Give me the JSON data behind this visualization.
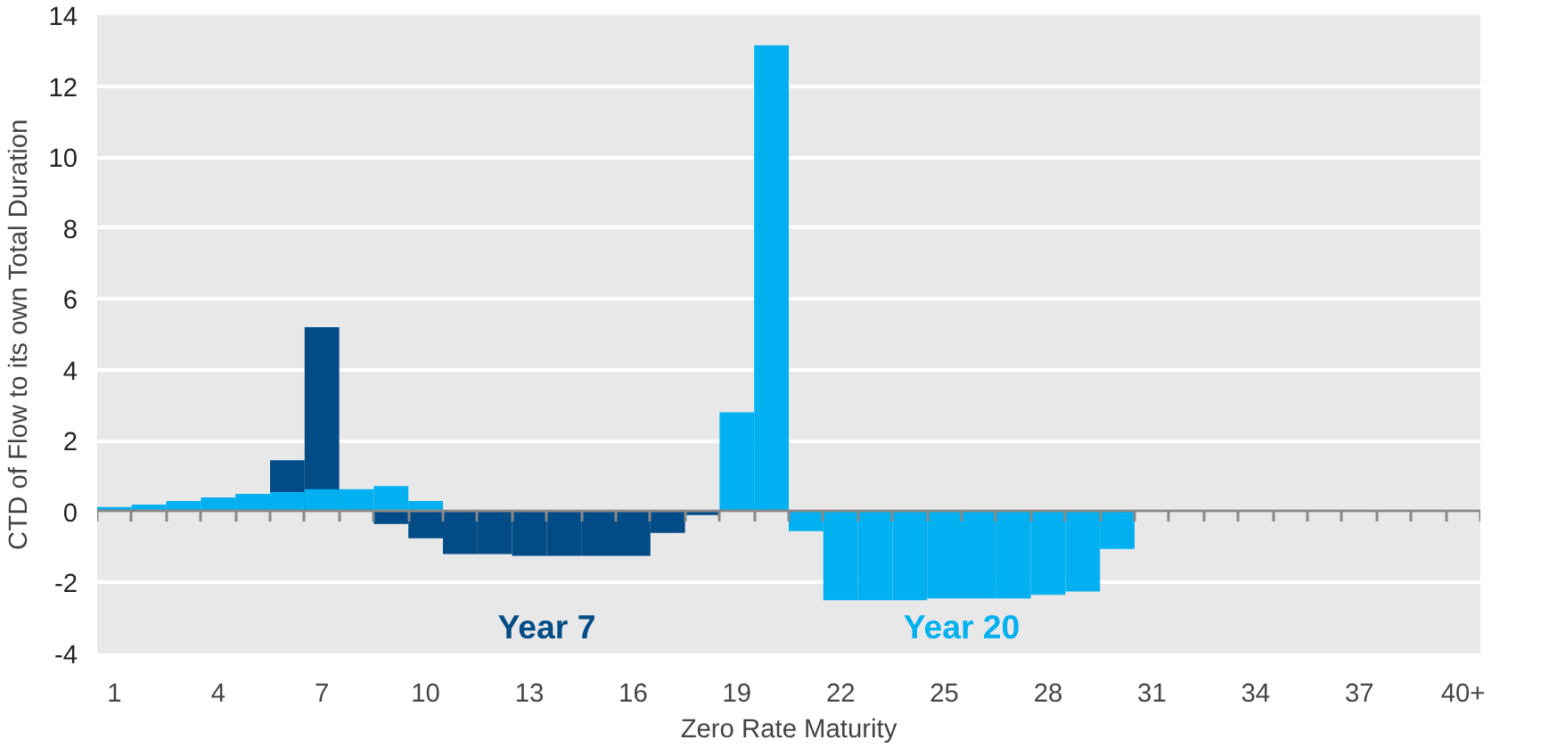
{
  "chart_data": {
    "type": "bar",
    "xlabel": "Zero Rate Maturity",
    "ylabel": "CTD of Flow to its own Total Duration",
    "categories": [
      "1",
      null,
      null,
      "4",
      null,
      null,
      "7",
      null,
      null,
      "10",
      null,
      null,
      "13",
      null,
      null,
      "16",
      null,
      null,
      "19",
      null,
      null,
      "22",
      null,
      null,
      "25",
      null,
      null,
      "28",
      null,
      null,
      "31",
      null,
      null,
      "34",
      null,
      null,
      "37",
      null,
      null,
      "40+"
    ],
    "series": [
      {
        "name": "Year 7",
        "color": "#014b87",
        "values": [
          null,
          null,
          null,
          null,
          null,
          1.45,
          5.2,
          null,
          -0.35,
          -0.75,
          -1.2,
          -1.2,
          -1.25,
          -1.25,
          -1.25,
          -1.25,
          -0.6,
          -0.1,
          null,
          null,
          null,
          null,
          null,
          null,
          null,
          null,
          null,
          null,
          null,
          null,
          null,
          null,
          null,
          null,
          null,
          null,
          null,
          null,
          null,
          null
        ]
      },
      {
        "name": "Year 20",
        "color": "#00b0f0",
        "values": [
          0.13,
          0.2,
          0.3,
          0.4,
          0.5,
          0.55,
          0.63,
          0.63,
          0.72,
          0.3,
          null,
          null,
          null,
          null,
          null,
          null,
          null,
          null,
          2.8,
          13.15,
          -0.55,
          -2.5,
          -2.5,
          -2.5,
          -2.45,
          -2.45,
          -2.45,
          -2.35,
          -2.25,
          -1.05,
          null,
          null,
          null,
          null,
          null,
          null,
          null,
          null,
          null,
          null
        ]
      }
    ],
    "ylim": [
      -4,
      14
    ],
    "yticks": [
      -4,
      -2,
      0,
      2,
      4,
      6,
      8,
      10,
      12,
      14
    ],
    "grid": "y"
  }
}
